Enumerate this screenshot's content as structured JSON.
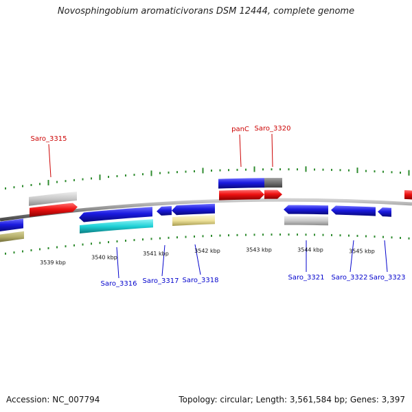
{
  "title": "Novosphingobium aromaticivorans DSM 12444, complete genome",
  "accession": "Accession: NC_007794",
  "topology": "Topology: circular; Length: 3,561,584 bp; Genes: 3,397",
  "colors": {
    "backbone": "#8a8a8a",
    "tick": "#2e8b2e",
    "label_top": "#cc0000",
    "label_bottom": "#0000cc",
    "blue": "#1a1adf",
    "red": "#ee1111",
    "gray": "#c8c8c8",
    "darkgray": "#707070",
    "cyan": "#1fd0d6",
    "khaki": "#eee29a",
    "olive": "#b4ae6a"
  },
  "kbp_ticks": [
    "3539 kbp",
    "3540 kbp",
    "3541 kbp",
    "3542 kbp",
    "3543 kbp",
    "3544 kbp",
    "3545 kbp"
  ],
  "top_labels": [
    "Saro_3315",
    "panC",
    "Saro_3320"
  ],
  "bottom_labels": [
    "Saro_3316",
    "Saro_3317",
    "Saro_3318",
    "Saro_3321",
    "Saro_3322",
    "Saro_3323"
  ],
  "features": [
    {
      "name": "olive",
      "color": "olive",
      "strand": "-"
    },
    {
      "name": "partial-blue-left",
      "color": "blue",
      "strand": "-"
    },
    {
      "name": "Saro_3315-gray",
      "color": "gray",
      "strand": "+"
    },
    {
      "name": "Saro_3315",
      "color": "red",
      "strand": "+"
    },
    {
      "name": "Saro_3316",
      "color": "blue",
      "strand": "-"
    },
    {
      "name": "Saro_3316-cyan",
      "color": "cyan",
      "strand": "-"
    },
    {
      "name": "Saro_3317",
      "color": "blue",
      "strand": "-"
    },
    {
      "name": "Saro_3318",
      "color": "blue",
      "strand": "-"
    },
    {
      "name": "Saro_3318-khaki",
      "color": "khaki",
      "strand": "-"
    },
    {
      "name": "panC-blue",
      "color": "blue",
      "strand": "+"
    },
    {
      "name": "panC-darkgray",
      "color": "darkgray",
      "strand": "+"
    },
    {
      "name": "panC",
      "color": "red",
      "strand": "+"
    },
    {
      "name": "Saro_3320",
      "color": "red",
      "strand": "+"
    },
    {
      "name": "Saro_3321",
      "color": "blue",
      "strand": "-"
    },
    {
      "name": "Saro_3321-gray",
      "color": "gray",
      "strand": "-"
    },
    {
      "name": "Saro_3322",
      "color": "blue",
      "strand": "-"
    },
    {
      "name": "Saro_3323",
      "color": "blue",
      "strand": "-"
    },
    {
      "name": "partial-red-right",
      "color": "red",
      "strand": "+"
    }
  ]
}
